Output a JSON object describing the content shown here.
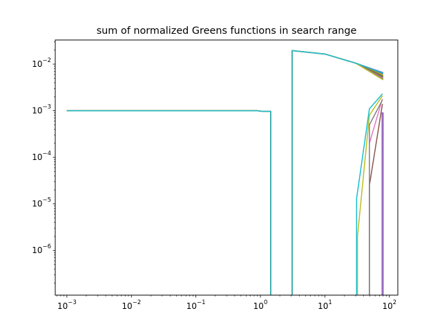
{
  "chart_data": {
    "type": "line",
    "title": "sum of normalized Greens functions in search range",
    "xlabel": "",
    "ylabel": "",
    "xscale": "log",
    "yscale": "log",
    "xlim": [
      0.00066,
      135
    ],
    "ylim": [
      1.1e-07,
      0.033
    ],
    "grid": false,
    "legend": "none",
    "x_ticks": [
      {
        "value": 0.001,
        "base": "10",
        "exp": "−3"
      },
      {
        "value": 0.01,
        "base": "10",
        "exp": "−2"
      },
      {
        "value": 0.1,
        "base": "10",
        "exp": "−1"
      },
      {
        "value": 1,
        "base": "10",
        "exp": "0"
      },
      {
        "value": 10,
        "base": "10",
        "exp": "1"
      },
      {
        "value": 100,
        "base": "10",
        "exp": "2"
      }
    ],
    "y_ticks": [
      {
        "value": 1e-06,
        "base": "10",
        "exp": "−6"
      },
      {
        "value": 1e-05,
        "base": "10",
        "exp": "−5"
      },
      {
        "value": 0.0001,
        "base": "10",
        "exp": "−4"
      },
      {
        "value": 0.001,
        "base": "10",
        "exp": "−3"
      },
      {
        "value": 0.01,
        "base": "10",
        "exp": "−2"
      }
    ],
    "series": [
      {
        "color": "#1f77b4",
        "points": [
          [
            0.001,
            0.001
          ],
          [
            0.9,
            0.001
          ],
          [
            1.1,
            0.00097
          ],
          [
            1.45,
            0.00097
          ],
          [
            1.45,
            1e-08
          ],
          [
            3.1,
            1e-08
          ],
          [
            3.1,
            0.0195
          ],
          [
            10,
            0.0165
          ],
          [
            30,
            0.0105
          ],
          [
            80,
            0.0062
          ]
        ],
        "tail": []
      },
      {
        "color": "#ff7f0e",
        "points": [
          [
            0.001,
            0.001
          ],
          [
            0.9,
            0.001
          ],
          [
            1.1,
            0.00097
          ],
          [
            1.45,
            0.00097
          ],
          [
            1.45,
            1e-08
          ],
          [
            3.1,
            1e-08
          ],
          [
            3.1,
            0.0195
          ],
          [
            10,
            0.0165
          ],
          [
            30,
            0.0105
          ],
          [
            80,
            0.0058
          ]
        ],
        "tail": []
      },
      {
        "color": "#2ca02c",
        "points": [
          [
            0.001,
            0.001
          ],
          [
            0.9,
            0.001
          ],
          [
            1.1,
            0.00097
          ],
          [
            1.45,
            0.00097
          ],
          [
            1.45,
            1e-08
          ],
          [
            3.1,
            1e-08
          ],
          [
            3.1,
            0.0195
          ],
          [
            10,
            0.0165
          ],
          [
            30,
            0.0105
          ],
          [
            80,
            0.0055
          ]
        ],
        "tail": []
      },
      {
        "color": "#d62728",
        "points": [
          [
            0.001,
            0.001
          ],
          [
            0.9,
            0.001
          ],
          [
            1.1,
            0.00097
          ],
          [
            1.45,
            0.00097
          ],
          [
            1.45,
            1e-08
          ],
          [
            3.1,
            1e-08
          ],
          [
            3.1,
            0.0195
          ],
          [
            10,
            0.0165
          ],
          [
            30,
            0.0105
          ],
          [
            80,
            0.0065
          ]
        ],
        "tail": []
      },
      {
        "color": "#9467bd",
        "points": [
          [
            0.001,
            0.001
          ],
          [
            0.9,
            0.001
          ],
          [
            1.1,
            0.00097
          ],
          [
            1.45,
            0.00097
          ],
          [
            1.45,
            1e-08
          ],
          [
            3.1,
            1e-08
          ],
          [
            3.1,
            0.0195
          ],
          [
            10,
            0.0165
          ],
          [
            30,
            0.0105
          ],
          [
            80,
            0.0066
          ]
        ],
        "tail": [
          [
            77,
            1e-08
          ],
          [
            77,
            0.0009
          ],
          [
            80,
            0.0009
          ],
          [
            80,
            1e-08
          ]
        ]
      },
      {
        "color": "#8c564b",
        "points": [
          [
            0.001,
            0.001
          ],
          [
            0.9,
            0.001
          ],
          [
            1.1,
            0.00097
          ],
          [
            1.45,
            0.00097
          ],
          [
            1.45,
            1e-08
          ],
          [
            3.1,
            1e-08
          ],
          [
            3.1,
            0.0195
          ],
          [
            10,
            0.0165
          ],
          [
            30,
            0.0105
          ],
          [
            80,
            0.0052
          ]
        ],
        "tail": [
          [
            49,
            1e-08
          ],
          [
            49,
            2.5e-05
          ],
          [
            78,
            0.0014
          ]
        ]
      },
      {
        "color": "#e377c2",
        "points": [
          [
            0.001,
            0.001
          ],
          [
            0.9,
            0.001
          ],
          [
            1.1,
            0.00097
          ],
          [
            1.45,
            0.00097
          ],
          [
            1.45,
            1e-08
          ],
          [
            3.1,
            1e-08
          ],
          [
            3.1,
            0.0195
          ],
          [
            10,
            0.0165
          ],
          [
            30,
            0.0105
          ],
          [
            80,
            0.005
          ]
        ],
        "tail": [
          [
            49,
            0.0002
          ],
          [
            78,
            0.0018
          ]
        ]
      },
      {
        "color": "#7f7f7f",
        "points": [
          [
            0.001,
            0.001
          ],
          [
            0.9,
            0.001
          ],
          [
            1.1,
            0.00097
          ],
          [
            1.45,
            0.00097
          ],
          [
            1.45,
            1e-08
          ],
          [
            3.1,
            1e-08
          ],
          [
            3.1,
            0.0195
          ],
          [
            10,
            0.0165
          ],
          [
            30,
            0.0105
          ],
          [
            80,
            0.0048
          ]
        ],
        "tail": [
          [
            49,
            1e-08
          ],
          [
            49,
            0.0005
          ],
          [
            78,
            0.0017
          ]
        ]
      },
      {
        "color": "#bcbd22",
        "points": [
          [
            0.001,
            0.001
          ],
          [
            0.9,
            0.001
          ],
          [
            1.1,
            0.00097
          ],
          [
            1.45,
            0.00097
          ],
          [
            1.45,
            1e-08
          ],
          [
            3.1,
            1e-08
          ],
          [
            3.1,
            0.0195
          ],
          [
            10,
            0.0165
          ],
          [
            30,
            0.0105
          ],
          [
            80,
            0.0046
          ]
        ],
        "tail": [
          [
            32,
            1e-08
          ],
          [
            32,
            2e-06
          ],
          [
            49,
            0.0008
          ],
          [
            78,
            0.0021
          ]
        ]
      },
      {
        "color": "#17becf",
        "points": [
          [
            0.001,
            0.001
          ],
          [
            0.9,
            0.001
          ],
          [
            1.1,
            0.00097
          ],
          [
            1.45,
            0.00097
          ],
          [
            1.45,
            1e-08
          ],
          [
            3.1,
            1e-08
          ],
          [
            3.1,
            0.0195
          ],
          [
            10,
            0.0165
          ],
          [
            30,
            0.0105
          ],
          [
            80,
            0.0064
          ]
        ],
        "tail": [
          [
            31,
            1e-08
          ],
          [
            31,
            1.3e-05
          ],
          [
            49,
            0.0011
          ],
          [
            78,
            0.0023
          ]
        ]
      }
    ]
  }
}
